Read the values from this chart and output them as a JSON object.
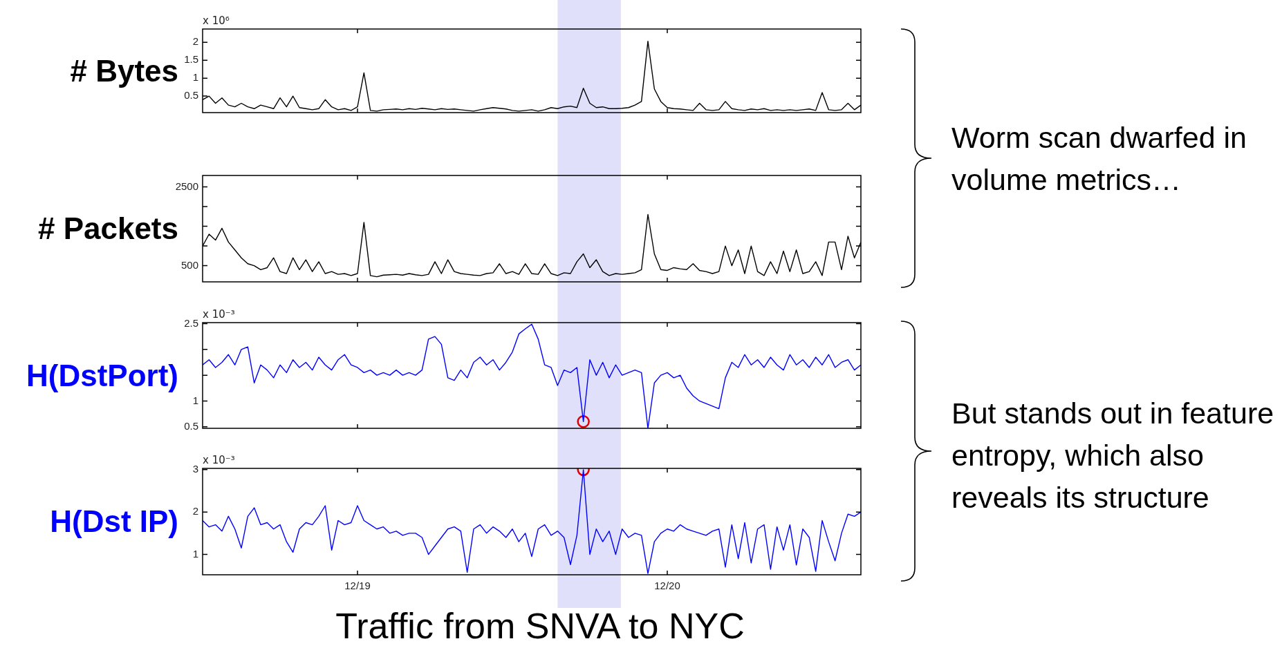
{
  "chart_data": [
    {
      "type": "line",
      "ylabel": "# Bytes",
      "subtitle": "x 10⁶",
      "tick_labels": "y",
      "annotations": [
        "Worm scan dwarfed in volume metrics…"
      ],
      "x": [
        "--12-18T12:00",
        "--12-18T12:30",
        "--12-18T13:00",
        "--12-18T13:30",
        "--12-18T14:00",
        "--12-18T14:30",
        "--12-18T15:00",
        "--12-18T15:30",
        "--12-18T16:00",
        "--12-18T16:30",
        "--12-18T17:00",
        "--12-18T17:30",
        "--12-18T18:00",
        "--12-18T18:30",
        "--12-18T19:00",
        "--12-18T19:30",
        "--12-18T20:00",
        "--12-18T20:30",
        "--12-18T21:00",
        "--12-18T21:30",
        "--12-18T22:00",
        "--12-18T22:30",
        "--12-18T23:00",
        "--12-18T23:30",
        "--12-19T00:00",
        "--12-19T00:30",
        "--12-19T01:00",
        "--12-19T01:30",
        "--12-19T02:00",
        "--12-19T02:30",
        "--12-19T03:00",
        "--12-19T03:30",
        "--12-19T04:00",
        "--12-19T04:30",
        "--12-19T05:00",
        "--12-19T05:30",
        "--12-19T06:00",
        "--12-19T06:30",
        "--12-19T07:00",
        "--12-19T07:30",
        "--12-19T08:00",
        "--12-19T08:30",
        "--12-19T09:00",
        "--12-19T09:30",
        "--12-19T10:00",
        "--12-19T10:30",
        "--12-19T11:00",
        "--12-19T11:30",
        "--12-19T12:00",
        "--12-19T12:30",
        "--12-19T13:00",
        "--12-19T13:30",
        "--12-19T14:00",
        "--12-19T14:30",
        "--12-19T15:00",
        "--12-19T15:30",
        "--12-19T16:00",
        "--12-19T16:30",
        "--12-19T17:00",
        "--12-19T17:30",
        "--12-19T18:00",
        "--12-19T18:30",
        "--12-19T19:00",
        "--12-19T19:30",
        "--12-19T20:00",
        "--12-19T20:30",
        "--12-19T21:00",
        "--12-19T21:30",
        "--12-19T22:00",
        "--12-19T22:30",
        "--12-19T23:00",
        "--12-19T23:30",
        "--12-20T00:00",
        "--12-20T00:30",
        "--12-20T01:00",
        "--12-20T01:30",
        "--12-20T02:00",
        "--12-20T02:30",
        "--12-20T03:00",
        "--12-20T03:30",
        "--12-20T04:00",
        "--12-20T04:30",
        "--12-20T05:00",
        "--12-20T05:30",
        "--12-20T06:00",
        "--12-20T06:30",
        "--12-20T07:00",
        "--12-20T07:30",
        "--12-20T08:00",
        "--12-20T08:30",
        "--12-20T09:00",
        "--12-20T09:30",
        "--12-20T10:00",
        "--12-20T10:30",
        "--12-20T11:00",
        "--12-20T11:30",
        "--12-20T12:00",
        "--12-20T12:30",
        "--12-20T13:00",
        "--12-20T13:30",
        "--12-20T14:00",
        "--12-20T14:30",
        "--12-20T15:00"
      ],
      "series": [
        {
          "color": "#000000",
          "values": [
            0.4,
            0.5,
            0.3,
            0.45,
            0.25,
            0.2,
            0.3,
            0.2,
            0.15,
            0.25,
            0.2,
            0.15,
            0.45,
            0.2,
            0.5,
            0.18,
            0.15,
            0.12,
            0.15,
            0.4,
            0.2,
            0.12,
            0.15,
            0.1,
            0.2,
            1.15,
            0.1,
            0.08,
            0.12,
            0.13,
            0.14,
            0.12,
            0.15,
            0.13,
            0.16,
            0.14,
            0.12,
            0.15,
            0.13,
            0.14,
            0.12,
            0.1,
            0.08,
            0.12,
            0.15,
            0.18,
            0.16,
            0.14,
            0.1,
            0.08,
            0.1,
            0.12,
            0.08,
            0.12,
            0.18,
            0.15,
            0.2,
            0.22,
            0.18,
            0.72,
            0.3,
            0.18,
            0.2,
            0.15,
            0.15,
            0.16,
            0.18,
            0.25,
            0.35,
            2.03,
            0.7,
            0.35,
            0.18,
            0.15,
            0.14,
            0.12,
            0.1,
            0.3,
            0.12,
            0.1,
            0.12,
            0.35,
            0.15,
            0.12,
            0.1,
            0.14,
            0.12,
            0.15,
            0.1,
            0.12,
            0.1,
            0.12,
            0.1,
            0.12,
            0.14,
            0.1,
            0.6,
            0.12,
            0.1,
            0.12,
            0.3,
            0.12,
            0.25
          ]
        }
      ],
      "xlim": [
        "--12-18T12:00",
        "--12-20T15:00"
      ],
      "xticks": [
        {
          "value": "--12-19",
          "label": null
        },
        {
          "value": "--12-20",
          "label": null
        }
      ],
      "ylim": [
        0.04,
        2.37
      ],
      "yticks": [
        0.5,
        1,
        1.5,
        2
      ],
      "bands": [
        {
          "axis": "x",
          "from": "--12-19T15:30",
          "to": "--12-19T20:24",
          "color": "#e0e0fa"
        }
      ]
    },
    {
      "type": "line",
      "ylabel": "# Packets",
      "tick_labels": "y",
      "x": [
        "--12-18T12:00",
        "--12-18T12:30",
        "--12-18T13:00",
        "--12-18T13:30",
        "--12-18T14:00",
        "--12-18T14:30",
        "--12-18T15:00",
        "--12-18T15:30",
        "--12-18T16:00",
        "--12-18T16:30",
        "--12-18T17:00",
        "--12-18T17:30",
        "--12-18T18:00",
        "--12-18T18:30",
        "--12-18T19:00",
        "--12-18T19:30",
        "--12-18T20:00",
        "--12-18T20:30",
        "--12-18T21:00",
        "--12-18T21:30",
        "--12-18T22:00",
        "--12-18T22:30",
        "--12-18T23:00",
        "--12-18T23:30",
        "--12-19T00:00",
        "--12-19T00:30",
        "--12-19T01:00",
        "--12-19T01:30",
        "--12-19T02:00",
        "--12-19T02:30",
        "--12-19T03:00",
        "--12-19T03:30",
        "--12-19T04:00",
        "--12-19T04:30",
        "--12-19T05:00",
        "--12-19T05:30",
        "--12-19T06:00",
        "--12-19T06:30",
        "--12-19T07:00",
        "--12-19T07:30",
        "--12-19T08:00",
        "--12-19T08:30",
        "--12-19T09:00",
        "--12-19T09:30",
        "--12-19T10:00",
        "--12-19T10:30",
        "--12-19T11:00",
        "--12-19T11:30",
        "--12-19T12:00",
        "--12-19T12:30",
        "--12-19T13:00",
        "--12-19T13:30",
        "--12-19T14:00",
        "--12-19T14:30",
        "--12-19T15:00",
        "--12-19T15:30",
        "--12-19T16:00",
        "--12-19T16:30",
        "--12-19T17:00",
        "--12-19T17:30",
        "--12-19T18:00",
        "--12-19T18:30",
        "--12-19T19:00",
        "--12-19T19:30",
        "--12-19T20:00",
        "--12-19T20:30",
        "--12-19T21:00",
        "--12-19T21:30",
        "--12-19T22:00",
        "--12-19T22:30",
        "--12-19T23:00",
        "--12-19T23:30",
        "--12-20T00:00",
        "--12-20T00:30",
        "--12-20T01:00",
        "--12-20T01:30",
        "--12-20T02:00",
        "--12-20T02:30",
        "--12-20T03:00",
        "--12-20T03:30",
        "--12-20T04:00",
        "--12-20T04:30",
        "--12-20T05:00",
        "--12-20T05:30",
        "--12-20T06:00",
        "--12-20T06:30",
        "--12-20T07:00",
        "--12-20T07:30",
        "--12-20T08:00",
        "--12-20T08:30",
        "--12-20T09:00",
        "--12-20T09:30",
        "--12-20T10:00",
        "--12-20T10:30",
        "--12-20T11:00",
        "--12-20T11:30",
        "--12-20T12:00",
        "--12-20T12:30",
        "--12-20T13:00",
        "--12-20T13:30",
        "--12-20T14:00",
        "--12-20T14:30",
        "--12-20T15:00"
      ],
      "series": [
        {
          "color": "#000000",
          "values": [
            1000,
            1300,
            1150,
            1450,
            1100,
            900,
            700,
            550,
            500,
            400,
            450,
            700,
            350,
            300,
            700,
            400,
            650,
            350,
            600,
            300,
            350,
            280,
            300,
            250,
            300,
            1600,
            250,
            220,
            260,
            270,
            280,
            260,
            300,
            270,
            250,
            280,
            600,
            300,
            650,
            350,
            300,
            280,
            260,
            250,
            300,
            320,
            550,
            300,
            350,
            280,
            550,
            300,
            280,
            550,
            300,
            250,
            320,
            300,
            600,
            800,
            450,
            650,
            350,
            250,
            300,
            280,
            300,
            320,
            400,
            1800,
            800,
            400,
            380,
            450,
            420,
            400,
            550,
            380,
            350,
            300,
            350,
            1000,
            500,
            900,
            300,
            1000,
            350,
            250,
            600,
            300,
            870,
            350,
            900,
            300,
            350,
            600,
            250,
            1100,
            1100,
            400,
            1250,
            700,
            1100
          ]
        }
      ],
      "xlim": [
        "--12-18T12:00",
        "--12-20T15:00"
      ],
      "xticks": [
        {
          "value": "--12-19",
          "label": null
        },
        {
          "value": "--12-20",
          "label": null
        }
      ],
      "ylim": [
        90,
        2790
      ],
      "yticks": [
        500,
        {
          "value": 1000,
          "label": null
        },
        {
          "value": 1500,
          "label": null
        },
        {
          "value": 2000,
          "label": null
        },
        2500
      ],
      "bands": [
        {
          "axis": "x",
          "from": "--12-19T15:30",
          "to": "--12-19T20:24",
          "color": "#e0e0fa"
        }
      ]
    },
    {
      "type": "line",
      "ylabel": "H(DstPort)",
      "subtitle": "x 10⁻³",
      "tick_labels": "y",
      "annotations": [
        "But stands out in feature entropy, which also reveals its structure"
      ],
      "x": [
        "--12-18T12:00",
        "--12-18T12:30",
        "--12-18T13:00",
        "--12-18T13:30",
        "--12-18T14:00",
        "--12-18T14:30",
        "--12-18T15:00",
        "--12-18T15:30",
        "--12-18T16:00",
        "--12-18T16:30",
        "--12-18T17:00",
        "--12-18T17:30",
        "--12-18T18:00",
        "--12-18T18:30",
        "--12-18T19:00",
        "--12-18T19:30",
        "--12-18T20:00",
        "--12-18T20:30",
        "--12-18T21:00",
        "--12-18T21:30",
        "--12-18T22:00",
        "--12-18T22:30",
        "--12-18T23:00",
        "--12-18T23:30",
        "--12-19T00:00",
        "--12-19T00:30",
        "--12-19T01:00",
        "--12-19T01:30",
        "--12-19T02:00",
        "--12-19T02:30",
        "--12-19T03:00",
        "--12-19T03:30",
        "--12-19T04:00",
        "--12-19T04:30",
        "--12-19T05:00",
        "--12-19T05:30",
        "--12-19T06:00",
        "--12-19T06:30",
        "--12-19T07:00",
        "--12-19T07:30",
        "--12-19T08:00",
        "--12-19T08:30",
        "--12-19T09:00",
        "--12-19T09:30",
        "--12-19T10:00",
        "--12-19T10:30",
        "--12-19T11:00",
        "--12-19T11:30",
        "--12-19T12:00",
        "--12-19T12:30",
        "--12-19T13:00",
        "--12-19T13:30",
        "--12-19T14:00",
        "--12-19T14:30",
        "--12-19T15:00",
        "--12-19T15:30",
        "--12-19T16:00",
        "--12-19T16:30",
        "--12-19T17:00",
        "--12-19T17:30",
        "--12-19T18:00",
        "--12-19T18:30",
        "--12-19T19:00",
        "--12-19T19:30",
        "--12-19T20:00",
        "--12-19T20:30",
        "--12-19T21:00",
        "--12-19T21:30",
        "--12-19T22:00",
        "--12-19T22:30",
        "--12-19T23:00",
        "--12-19T23:30",
        "--12-20T00:00",
        "--12-20T00:30",
        "--12-20T01:00",
        "--12-20T01:30",
        "--12-20T02:00",
        "--12-20T02:30",
        "--12-20T03:00",
        "--12-20T03:30",
        "--12-20T04:00",
        "--12-20T04:30",
        "--12-20T05:00",
        "--12-20T05:30",
        "--12-20T06:00",
        "--12-20T06:30",
        "--12-20T07:00",
        "--12-20T07:30",
        "--12-20T08:00",
        "--12-20T08:30",
        "--12-20T09:00",
        "--12-20T09:30",
        "--12-20T10:00",
        "--12-20T10:30",
        "--12-20T11:00",
        "--12-20T11:30",
        "--12-20T12:00",
        "--12-20T12:30",
        "--12-20T13:00",
        "--12-20T13:30",
        "--12-20T14:00",
        "--12-20T14:30",
        "--12-20T15:00"
      ],
      "series": [
        {
          "color": "#0000ff",
          "values": [
            1.7,
            1.8,
            1.65,
            1.75,
            1.9,
            1.7,
            2.0,
            2.05,
            1.35,
            1.7,
            1.6,
            1.45,
            1.7,
            1.55,
            1.8,
            1.65,
            1.75,
            1.6,
            1.85,
            1.7,
            1.6,
            1.8,
            1.9,
            1.7,
            1.65,
            1.55,
            1.6,
            1.5,
            1.55,
            1.5,
            1.6,
            1.5,
            1.55,
            1.5,
            1.6,
            2.2,
            2.25,
            2.1,
            1.45,
            1.4,
            1.6,
            1.45,
            1.75,
            1.85,
            1.7,
            1.8,
            1.6,
            1.75,
            1.95,
            2.3,
            2.4,
            2.49,
            2.2,
            1.7,
            1.65,
            1.3,
            1.6,
            1.55,
            1.65,
            0.6,
            1.8,
            1.5,
            1.75,
            1.45,
            1.7,
            1.5,
            1.55,
            1.6,
            1.55,
            0.47,
            1.35,
            1.5,
            1.55,
            1.45,
            1.5,
            1.25,
            1.1,
            1.0,
            0.95,
            0.9,
            0.85,
            1.45,
            1.75,
            1.65,
            1.9,
            1.7,
            1.8,
            1.65,
            1.85,
            1.7,
            1.6,
            1.9,
            1.7,
            1.8,
            1.65,
            1.85,
            1.7,
            1.9,
            1.65,
            1.75,
            1.8,
            1.6,
            1.7
          ]
        },
        {
          "type": "scatter",
          "color": "#e00000",
          "marker": "circle",
          "x": [
            "--12-19T17:30"
          ],
          "values": [
            0.6
          ]
        }
      ],
      "xlim": [
        "--12-18T12:00",
        "--12-20T15:00"
      ],
      "xticks": [
        {
          "value": "--12-19",
          "label": null
        },
        {
          "value": "--12-20",
          "label": null
        }
      ],
      "ylim": [
        0.47,
        2.52
      ],
      "yticks": [
        0.5,
        1,
        {
          "value": 1.5,
          "label": null
        },
        {
          "value": 2,
          "label": null
        },
        2.5
      ],
      "bands": [
        {
          "axis": "x",
          "from": "--12-19T15:30",
          "to": "--12-19T20:24",
          "color": "#e0e0fa"
        }
      ]
    },
    {
      "type": "line",
      "ylabel": "H(Dst IP)",
      "subtitle": "x 10⁻³",
      "xlabel": "Traffic from SNVA to NYC",
      "x": [
        "--12-18T12:00",
        "--12-18T12:30",
        "--12-18T13:00",
        "--12-18T13:30",
        "--12-18T14:00",
        "--12-18T14:30",
        "--12-18T15:00",
        "--12-18T15:30",
        "--12-18T16:00",
        "--12-18T16:30",
        "--12-18T17:00",
        "--12-18T17:30",
        "--12-18T18:00",
        "--12-18T18:30",
        "--12-18T19:00",
        "--12-18T19:30",
        "--12-18T20:00",
        "--12-18T20:30",
        "--12-18T21:00",
        "--12-18T21:30",
        "--12-18T22:00",
        "--12-18T22:30",
        "--12-18T23:00",
        "--12-18T23:30",
        "--12-19T00:00",
        "--12-19T00:30",
        "--12-19T01:00",
        "--12-19T01:30",
        "--12-19T02:00",
        "--12-19T02:30",
        "--12-19T03:00",
        "--12-19T03:30",
        "--12-19T04:00",
        "--12-19T04:30",
        "--12-19T05:00",
        "--12-19T05:30",
        "--12-19T06:00",
        "--12-19T06:30",
        "--12-19T07:00",
        "--12-19T07:30",
        "--12-19T08:00",
        "--12-19T08:30",
        "--12-19T09:00",
        "--12-19T09:30",
        "--12-19T10:00",
        "--12-19T10:30",
        "--12-19T11:00",
        "--12-19T11:30",
        "--12-19T12:00",
        "--12-19T12:30",
        "--12-19T13:00",
        "--12-19T13:30",
        "--12-19T14:00",
        "--12-19T14:30",
        "--12-19T15:00",
        "--12-19T15:30",
        "--12-19T16:00",
        "--12-19T16:30",
        "--12-19T17:00",
        "--12-19T17:30",
        "--12-19T18:00",
        "--12-19T18:30",
        "--12-19T19:00",
        "--12-19T19:30",
        "--12-19T20:00",
        "--12-19T20:30",
        "--12-19T21:00",
        "--12-19T21:30",
        "--12-19T22:00",
        "--12-19T22:30",
        "--12-19T23:00",
        "--12-19T23:30",
        "--12-20T00:00",
        "--12-20T00:30",
        "--12-20T01:00",
        "--12-20T01:30",
        "--12-20T02:00",
        "--12-20T02:30",
        "--12-20T03:00",
        "--12-20T03:30",
        "--12-20T04:00",
        "--12-20T04:30",
        "--12-20T05:00",
        "--12-20T05:30",
        "--12-20T06:00",
        "--12-20T06:30",
        "--12-20T07:00",
        "--12-20T07:30",
        "--12-20T08:00",
        "--12-20T08:30",
        "--12-20T09:00",
        "--12-20T09:30",
        "--12-20T10:00",
        "--12-20T10:30",
        "--12-20T11:00",
        "--12-20T11:30",
        "--12-20T12:00",
        "--12-20T12:30",
        "--12-20T13:00",
        "--12-20T13:30",
        "--12-20T14:00",
        "--12-20T14:30",
        "--12-20T15:00"
      ],
      "series": [
        {
          "color": "#0000ff",
          "values": [
            1.8,
            1.65,
            1.7,
            1.55,
            1.9,
            1.6,
            1.15,
            1.9,
            2.1,
            1.7,
            1.75,
            1.6,
            1.7,
            1.3,
            1.05,
            1.6,
            1.75,
            1.7,
            1.9,
            2.15,
            1.1,
            1.8,
            1.7,
            1.75,
            2.15,
            1.8,
            1.7,
            1.6,
            1.65,
            1.5,
            1.55,
            1.45,
            1.5,
            1.5,
            1.4,
            1.0,
            1.2,
            1.4,
            1.6,
            1.65,
            1.55,
            0.58,
            1.6,
            1.7,
            1.5,
            1.65,
            1.55,
            1.4,
            1.6,
            1.3,
            1.5,
            0.95,
            1.6,
            1.7,
            1.45,
            1.55,
            1.4,
            0.76,
            1.45,
            3.0,
            1.0,
            1.6,
            1.3,
            1.55,
            1.0,
            1.6,
            1.4,
            1.5,
            1.45,
            0.55,
            1.3,
            1.5,
            1.6,
            1.55,
            1.7,
            1.6,
            1.55,
            1.5,
            1.45,
            1.55,
            1.6,
            0.7,
            1.7,
            0.9,
            1.75,
            0.8,
            1.6,
            1.7,
            0.65,
            1.65,
            1.1,
            1.7,
            0.75,
            1.6,
            1.4,
            0.6,
            1.8,
            1.3,
            0.85,
            1.5,
            1.95,
            1.9,
            2.0
          ]
        },
        {
          "type": "scatter",
          "color": "#e00000",
          "marker": "circle",
          "x": [
            "--12-19T17:30"
          ],
          "values": [
            3.0
          ]
        }
      ],
      "xlim": [
        "--12-18T12:00",
        "--12-20T15:00"
      ],
      "xticks": [
        {
          "value": "--12-19",
          "label": "12/19"
        },
        {
          "value": "--12-20",
          "label": "12/20"
        }
      ],
      "ylim": [
        0.52,
        3.03
      ],
      "yticks": [
        1,
        2,
        3
      ],
      "bands": [
        {
          "axis": "x",
          "from": "--12-19T15:30",
          "to": "--12-19T20:24",
          "color": "#e0e0fa"
        }
      ]
    }
  ]
}
